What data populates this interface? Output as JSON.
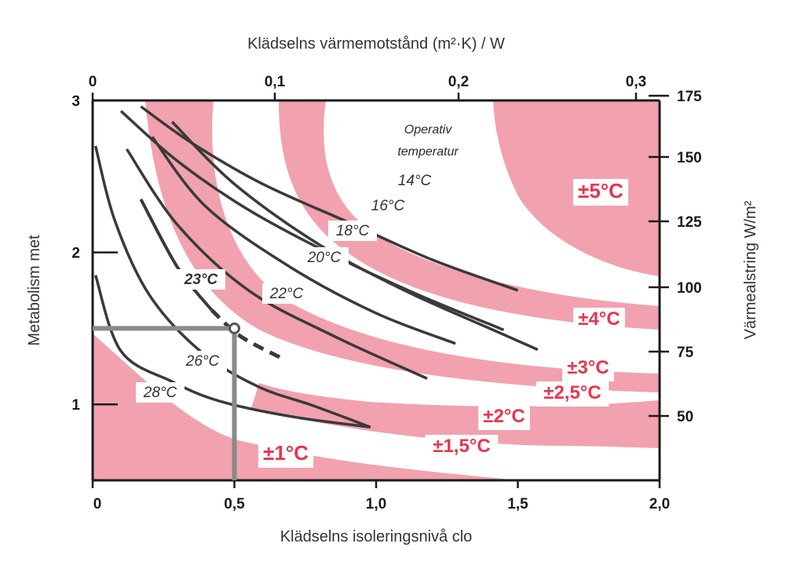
{
  "chart_data": {
    "type": "line",
    "title": "",
    "xlabel": "Klädselns isoleringsnivå    clo",
    "x2label": "Klädselns värmemotstånd (m²·K) / W",
    "ylabel": "Metabolism    met",
    "y2label": "Värmealstring    W/m²",
    "xlim": [
      0,
      2.0
    ],
    "ylim": [
      0.5,
      3.0
    ],
    "x_ticks": [
      "0",
      "0,5",
      "1,0",
      "1,5",
      "2,0"
    ],
    "x2_ticks": [
      "0",
      "0,1",
      "0,2",
      "0,3"
    ],
    "y_ticks": [
      "1",
      "2",
      "3"
    ],
    "y2_ticks": [
      "50",
      "75",
      "100",
      "125",
      "150",
      "175"
    ],
    "annotation": [
      "Operativ",
      "temperatur"
    ],
    "colors": {
      "band": "#f2a1ae",
      "zone_label": "#e8354d",
      "curve": "#3a3a3a",
      "marker": "#8a8a8a"
    },
    "series": [
      {
        "name": "14°C",
        "points": [
          [
            0.17,
            2.96
          ],
          [
            0.35,
            2.72
          ],
          [
            0.6,
            2.45
          ],
          [
            0.9,
            2.2
          ],
          [
            1.2,
            1.95
          ],
          [
            1.5,
            1.75
          ]
        ]
      },
      {
        "name": "16°C",
        "points": [
          [
            0.1,
            2.93
          ],
          [
            0.3,
            2.6
          ],
          [
            0.55,
            2.28
          ],
          [
            0.85,
            1.98
          ],
          [
            1.15,
            1.72
          ],
          [
            1.45,
            1.49
          ]
        ]
      },
      {
        "name": "18°C",
        "points": [
          [
            0.28,
            2.86
          ],
          [
            0.5,
            2.45
          ],
          [
            0.8,
            2.05
          ],
          [
            1.1,
            1.75
          ],
          [
            1.4,
            1.5
          ],
          [
            1.57,
            1.36
          ]
        ]
      },
      {
        "name": "20°C",
        "points": [
          [
            0.21,
            2.76
          ],
          [
            0.4,
            2.3
          ],
          [
            0.7,
            1.9
          ],
          [
            1.0,
            1.6
          ],
          [
            1.28,
            1.4
          ]
        ]
      },
      {
        "name": "22°C",
        "points": [
          [
            0.12,
            2.68
          ],
          [
            0.3,
            2.18
          ],
          [
            0.55,
            1.75
          ],
          [
            0.85,
            1.45
          ],
          [
            1.18,
            1.17
          ]
        ]
      },
      {
        "name": "23°C",
        "dashed_from_x": 0.4,
        "points": [
          [
            0.17,
            2.35
          ],
          [
            0.3,
            1.9
          ],
          [
            0.42,
            1.62
          ],
          [
            0.52,
            1.45
          ],
          [
            0.66,
            1.31
          ]
        ]
      },
      {
        "name": "26°C",
        "points": [
          [
            0.01,
            2.7
          ],
          [
            0.08,
            2.2
          ],
          [
            0.2,
            1.72
          ],
          [
            0.38,
            1.35
          ],
          [
            0.58,
            1.12
          ],
          [
            0.78,
            0.99
          ],
          [
            0.98,
            0.85
          ]
        ]
      },
      {
        "name": "28°C",
        "points": [
          [
            0.01,
            1.85
          ],
          [
            0.1,
            1.35
          ],
          [
            0.28,
            1.15
          ],
          [
            0.45,
            1.02
          ],
          [
            0.7,
            0.92
          ],
          [
            0.98,
            0.85
          ]
        ]
      }
    ],
    "zones": [
      "±1°C",
      "±1,5°C",
      "±2°C",
      "±2,5°C",
      "±3°C",
      "±4°C",
      "±5°C"
    ],
    "example_point": {
      "x": 0.5,
      "y": 1.5
    }
  }
}
